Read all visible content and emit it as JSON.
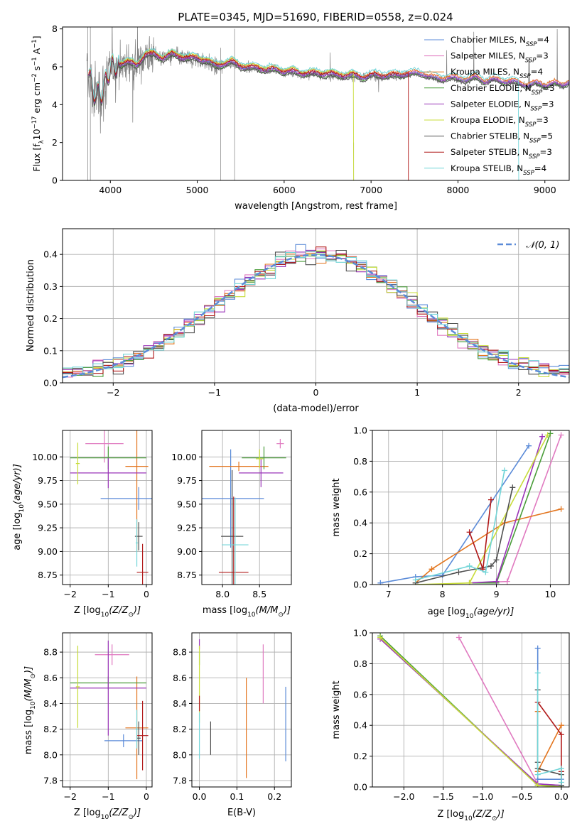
{
  "title": "PLATE=0345, MJD=51690, FIBERID=0558, z=0.024",
  "colors": {
    "c1": "#5b8bd8",
    "c2": "#e07ac0",
    "c3": "#e3751e",
    "c4": "#4a9d3a",
    "c5": "#9a34b8",
    "c6": "#c8dc3a",
    "c7": "#505050",
    "c8": "#b01818",
    "c9": "#72d5d8",
    "gray": "#808080",
    "grid": "#b0b0b0",
    "dash": "#5b8bd8"
  },
  "chart_data": [
    {
      "type": "line",
      "id": "spectrum",
      "xlabel": "wavelength [Angstrom, rest frame]",
      "ylabel_parts": [
        "Flux [f",
        "λ",
        "10",
        "−17",
        " erg cm",
        "−2",
        " s",
        "−1",
        " A",
        "−1",
        "]"
      ],
      "xlim": [
        3450,
        9280
      ],
      "ylim": [
        0,
        8.1
      ],
      "xticks": [
        4000,
        5000,
        6000,
        7000,
        8000,
        9000
      ],
      "yticks": [
        0,
        2,
        4,
        6,
        8
      ],
      "grid": false,
      "legend_position": "upper-right",
      "legend": [
        {
          "label": "Chabrier MILES, N",
          "sub": "SSP",
          "suffix": "=4",
          "color_key": "c1"
        },
        {
          "label": "Salpeter MILES, N",
          "sub": "SSP",
          "suffix": "=3",
          "color_key": "c2"
        },
        {
          "label": "Kroupa MILES, N",
          "sub": "SSP",
          "suffix": "=4",
          "color_key": "c3"
        },
        {
          "label": "Chabrier ELODIE, N",
          "sub": "SSP",
          "suffix": "=3",
          "color_key": "c4"
        },
        {
          "label": "Salpeter ELODIE, N",
          "sub": "SSP",
          "suffix": "=3",
          "color_key": "c5"
        },
        {
          "label": "Kroupa ELODIE, N",
          "sub": "SSP",
          "suffix": "=3",
          "color_key": "c6"
        },
        {
          "label": "Chabrier STELIB, N",
          "sub": "SSP",
          "suffix": "=5",
          "color_key": "c7"
        },
        {
          "label": "Salpeter STELIB, N",
          "sub": "SSP",
          "suffix": "=3",
          "color_key": "c8"
        },
        {
          "label": "Kroupa STELIB, N",
          "sub": "SSP",
          "suffix": "=4",
          "color_key": "c9"
        }
      ],
      "continuum": [
        [
          3750,
          5.7
        ],
        [
          3800,
          4.5
        ],
        [
          3900,
          4.6
        ],
        [
          4000,
          5.8
        ],
        [
          4100,
          6.1
        ],
        [
          4200,
          6.2
        ],
        [
          4300,
          6.0
        ],
        [
          4400,
          6.6
        ],
        [
          4500,
          6.6
        ],
        [
          4600,
          6.4
        ],
        [
          4700,
          6.6
        ],
        [
          4800,
          6.5
        ],
        [
          4900,
          6.4
        ],
        [
          5000,
          6.4
        ],
        [
          5100,
          6.3
        ],
        [
          5200,
          6.0
        ],
        [
          5300,
          6.1
        ],
        [
          5400,
          6.2
        ],
        [
          5500,
          6.0
        ],
        [
          5600,
          5.9
        ],
        [
          5700,
          5.9
        ],
        [
          5800,
          5.8
        ],
        [
          5900,
          5.8
        ],
        [
          6000,
          5.7
        ],
        [
          6100,
          5.7
        ],
        [
          6200,
          5.6
        ],
        [
          6300,
          5.6
        ],
        [
          6400,
          5.6
        ],
        [
          6500,
          5.6
        ],
        [
          6600,
          5.5
        ],
        [
          6700,
          5.5
        ],
        [
          6800,
          5.5
        ],
        [
          6900,
          5.4
        ],
        [
          7000,
          5.5
        ],
        [
          7100,
          5.5
        ],
        [
          7200,
          5.5
        ],
        [
          7300,
          5.5
        ],
        [
          7400,
          5.6
        ],
        [
          7500,
          5.6
        ],
        [
          7600,
          5.6
        ],
        [
          7700,
          5.4
        ],
        [
          7800,
          5.3
        ],
        [
          7900,
          5.4
        ],
        [
          8000,
          5.3
        ],
        [
          8100,
          5.3
        ],
        [
          8200,
          5.4
        ],
        [
          8300,
          5.2
        ],
        [
          8400,
          5.3
        ],
        [
          8500,
          5.2
        ],
        [
          8600,
          5.2
        ],
        [
          8700,
          5.1
        ],
        [
          8800,
          5.0
        ],
        [
          8900,
          5.1
        ],
        [
          9000,
          5.0
        ],
        [
          9100,
          5.1
        ],
        [
          9200,
          5.0
        ],
        [
          9280,
          5.2
        ]
      ],
      "model_cutoffs": {
        "c8": [
          3750,
          7430
        ],
        "c6": [
          3900,
          6800
        ],
        "c9": [
          3750,
          8700
        ],
        "c3": [
          3750,
          9280
        ],
        "c1": [
          3750,
          9280
        ],
        "c2": [
          3750,
          9280
        ],
        "c4": [
          3750,
          9280
        ],
        "c5": [
          3750,
          9280
        ],
        "c7": [
          3750,
          9280
        ]
      },
      "model_offsets": {
        "c1": 0.05,
        "c2": 0.1,
        "c3": 0.15,
        "c4": -0.05,
        "c5": 0.0,
        "c6": 0.2,
        "c7": -0.1,
        "c8": 0.1,
        "c9": 0.25
      }
    },
    {
      "type": "bar",
      "id": "residuals",
      "xlabel": "(data-model)/error",
      "ylabel": "Normed distribution",
      "xlim": [
        -2.5,
        2.5
      ],
      "ylim": [
        0,
        0.48
      ],
      "xticks": [
        -2,
        -1,
        0,
        1,
        2
      ],
      "yticks": [
        0.0,
        0.1,
        0.2,
        0.3,
        0.4
      ],
      "grid": true,
      "legend_label": "𝒩(0, 1)",
      "legend_position": "upper-right",
      "bin_width": 0.1,
      "bin_start": -2.5
    },
    {
      "type": "scatter",
      "id": "age_vs_Z",
      "xlabel_parts": [
        "Z [log",
        "10",
        "(Z/Z",
        "⊙",
        ")]"
      ],
      "ylabel_parts": [
        "age  [log",
        "10",
        "(age/yr)]"
      ],
      "xlim": [
        -2.2,
        0.15
      ],
      "ylim": [
        8.65,
        10.28
      ],
      "xticks": [
        -2,
        -1,
        0
      ],
      "yticks": [
        8.75,
        9.0,
        9.25,
        9.5,
        9.75,
        10.0
      ],
      "grid": true,
      "points": [
        {
          "x": -0.2,
          "y": 9.56,
          "xerr": 1.0,
          "yerr": 0.12,
          "color_key": "c1"
        },
        {
          "x": -1.1,
          "y": 10.14,
          "xerr": 0.5,
          "yerr": 0.2,
          "color_key": "c2"
        },
        {
          "x": -0.25,
          "y": 9.9,
          "xerr": 0.3,
          "yerr": 0.9,
          "color_key": "c3"
        },
        {
          "x": -1.0,
          "y": 9.99,
          "xerr": 1.0,
          "yerr": 0.12,
          "color_key": "c4"
        },
        {
          "x": -1.0,
          "y": 9.83,
          "xerr": 1.0,
          "yerr": 0.16,
          "color_key": "c5"
        },
        {
          "x": -1.8,
          "y": 9.93,
          "xerr": 0.05,
          "yerr": 0.22,
          "color_key": "c6"
        },
        {
          "x": -0.2,
          "y": 9.16,
          "xerr": 0.1,
          "yerr": 0.15,
          "color_key": "c7"
        },
        {
          "x": -0.1,
          "y": 8.78,
          "xerr": 0.15,
          "yerr": 0.3,
          "color_key": "c8"
        },
        {
          "x": -0.25,
          "y": 9.09,
          "xerr": 0.03,
          "yerr": 0.25,
          "color_key": "c9"
        }
      ]
    },
    {
      "type": "scatter",
      "id": "age_vs_mass",
      "xlabel_parts": [
        "mass [log",
        "10",
        "(M/M",
        "⊙",
        ")]"
      ],
      "xlim": [
        7.72,
        8.93
      ],
      "ylim": [
        8.65,
        10.28
      ],
      "xticks": [
        8.0,
        8.5
      ],
      "yticks": [
        8.75,
        9.0,
        9.25,
        9.5,
        9.75,
        10.0
      ],
      "grid": true,
      "points": [
        {
          "x": 8.11,
          "y": 9.56,
          "xerr": 0.45,
          "yerr": 0.52,
          "color_key": "c1"
        },
        {
          "x": 8.78,
          "y": 10.14,
          "xerr": 0.05,
          "yerr": 0.05,
          "color_key": "c2"
        },
        {
          "x": 8.22,
          "y": 9.9,
          "xerr": 0.4,
          "yerr": 0.05,
          "color_key": "c3"
        },
        {
          "x": 8.56,
          "y": 9.99,
          "xerr": 0.3,
          "yerr": 0.12,
          "color_key": "c4"
        },
        {
          "x": 8.52,
          "y": 9.83,
          "xerr": 0.3,
          "yerr": 0.15,
          "color_key": "c5"
        },
        {
          "x": 8.5,
          "y": 9.98,
          "xerr": 0.05,
          "yerr": 0.1,
          "color_key": "c6"
        },
        {
          "x": 8.13,
          "y": 9.16,
          "xerr": 0.15,
          "yerr": 0.7,
          "color_key": "c7"
        },
        {
          "x": 8.15,
          "y": 8.78,
          "xerr": 0.2,
          "yerr": 0.8,
          "color_key": "c8"
        },
        {
          "x": 8.17,
          "y": 9.07,
          "xerr": 0.18,
          "yerr": 0.5,
          "color_key": "c9"
        }
      ]
    },
    {
      "type": "line",
      "id": "weight_vs_age",
      "xlabel_parts": [
        "age  [log",
        "10",
        "(age/yr)]"
      ],
      "ylabel": "mass weight",
      "xlim": [
        6.7,
        10.35
      ],
      "ylim": [
        0,
        1.0
      ],
      "xticks": [
        7,
        8,
        9,
        10
      ],
      "yticks": [
        0.0,
        0.2,
        0.4,
        0.6,
        0.8,
        1.0
      ],
      "grid": true,
      "series": [
        {
          "color_key": "c1",
          "x": [
            6.85,
            7.5,
            8.0,
            9.6
          ],
          "y": [
            0.01,
            0.05,
            0.06,
            0.9
          ]
        },
        {
          "color_key": "c2",
          "x": [
            8.5,
            9.2,
            10.2
          ],
          "y": [
            0.01,
            0.02,
            0.97
          ]
        },
        {
          "color_key": "c3",
          "x": [
            7.5,
            7.8,
            9.15,
            10.2
          ],
          "y": [
            0.01,
            0.1,
            0.4,
            0.49
          ]
        },
        {
          "color_key": "c4",
          "x": [
            8.5,
            9.0,
            10.0
          ],
          "y": [
            0.01,
            0.01,
            0.98
          ]
        },
        {
          "color_key": "c5",
          "x": [
            8.5,
            9.0,
            9.85
          ],
          "y": [
            0.01,
            0.02,
            0.96
          ]
        },
        {
          "color_key": "c6",
          "x": [
            7.5,
            8.5,
            9.95
          ],
          "y": [
            0.0,
            0.01,
            0.97
          ]
        },
        {
          "color_key": "c7",
          "x": [
            7.5,
            8.3,
            8.9,
            9.0,
            9.3
          ],
          "y": [
            0.01,
            0.08,
            0.12,
            0.16,
            0.63
          ]
        },
        {
          "color_key": "c8",
          "x": [
            8.5,
            8.75,
            8.9
          ],
          "y": [
            0.34,
            0.1,
            0.55
          ]
        },
        {
          "color_key": "c9",
          "x": [
            7.5,
            8.5,
            8.8,
            9.15
          ],
          "y": [
            0.03,
            0.12,
            0.08,
            0.74
          ]
        }
      ]
    },
    {
      "type": "scatter",
      "id": "mass_vs_Z",
      "xlabel_parts": [
        "Z [log",
        "10",
        "(Z/Z",
        "⊙",
        ")]"
      ],
      "ylabel_parts": [
        "mass [log",
        "10",
        "(M/M",
        "⊙",
        ")]"
      ],
      "xlim": [
        -2.2,
        0.15
      ],
      "ylim": [
        7.75,
        8.95
      ],
      "xticks": [
        -2,
        -1,
        0
      ],
      "yticks": [
        7.8,
        8.0,
        8.2,
        8.4,
        8.6,
        8.8
      ],
      "grid": true,
      "points": [
        {
          "x": -0.6,
          "y": 8.11,
          "xerr": 0.5,
          "yerr": 0.05,
          "color_key": "c1"
        },
        {
          "x": -0.9,
          "y": 8.78,
          "xerr": 0.45,
          "yerr": 0.08,
          "color_key": "c2"
        },
        {
          "x": -0.25,
          "y": 8.21,
          "xerr": 0.3,
          "yerr": 0.4,
          "color_key": "c3"
        },
        {
          "x": -1.0,
          "y": 8.56,
          "xerr": 1.0,
          "yerr": 0.05,
          "color_key": "c4"
        },
        {
          "x": -1.0,
          "y": 8.52,
          "xerr": 1.0,
          "yerr": 0.37,
          "color_key": "c5"
        },
        {
          "x": -1.8,
          "y": 8.53,
          "xerr": 0.05,
          "yerr": 0.32,
          "color_key": "c6"
        },
        {
          "x": -0.2,
          "y": 8.13,
          "xerr": 0.05,
          "yerr": 0.13,
          "color_key": "c7"
        },
        {
          "x": -0.1,
          "y": 8.15,
          "xerr": 0.15,
          "yerr": 0.27,
          "color_key": "c8"
        },
        {
          "x": -0.25,
          "y": 8.2,
          "xerr": 0.03,
          "yerr": 0.15,
          "color_key": "c9"
        }
      ]
    },
    {
      "type": "scatter",
      "id": "ebv",
      "xlabel": "E(B-V)",
      "xlim": [
        -0.02,
        0.245
      ],
      "ylim": [
        7.75,
        8.95
      ],
      "xticks": [
        0.0,
        0.1,
        0.2
      ],
      "yticks": [
        7.8,
        8.0,
        8.2,
        8.4,
        8.6,
        8.8
      ],
      "grid": true,
      "points": [
        {
          "x": 0.23,
          "y": 8.24,
          "yerr": 0.29,
          "color_key": "c1"
        },
        {
          "x": 0.17,
          "y": 8.63,
          "yerr": 0.23,
          "color_key": "c2"
        },
        {
          "x": 0.125,
          "y": 8.21,
          "yerr": 0.39,
          "color_key": "c3"
        },
        {
          "x": 0.0,
          "y": 8.75,
          "yerr": 0.05,
          "color_key": "c4"
        },
        {
          "x": 0.0,
          "y": 8.86,
          "yerr": 0.04,
          "color_key": "c5"
        },
        {
          "x": 0.0,
          "y": 8.55,
          "yerr": 0.3,
          "color_key": "c6"
        },
        {
          "x": 0.03,
          "y": 8.13,
          "yerr": 0.13,
          "color_key": "c7"
        },
        {
          "x": 0.0,
          "y": 8.4,
          "yerr": 0.06,
          "color_key": "c8"
        },
        {
          "x": 0.0,
          "y": 8.15,
          "yerr": 0.18,
          "color_key": "c9"
        }
      ]
    },
    {
      "type": "line",
      "id": "weight_vs_Z",
      "xlabel_parts": [
        "Z [log",
        "10",
        "(Z/Z",
        "⊙",
        ")]"
      ],
      "ylabel": "mass weight",
      "xlim": [
        -2.4,
        0.1
      ],
      "ylim": [
        0,
        1.0
      ],
      "xticks": [
        -2.0,
        -1.5,
        -1.0,
        -0.5,
        0.0
      ],
      "yticks": [
        0.0,
        0.2,
        0.4,
        0.6,
        0.8,
        1.0
      ],
      "grid": true,
      "series": [
        {
          "color_key": "c1",
          "x": [
            -0.3,
            -0.3,
            0.0,
            0.0
          ],
          "y": [
            0.9,
            0.05,
            0.05,
            0.0
          ]
        },
        {
          "color_key": "c2",
          "x": [
            -1.3,
            -0.3,
            0.0
          ],
          "y": [
            0.97,
            0.02,
            0.01
          ]
        },
        {
          "color_key": "c3",
          "x": [
            -0.3,
            -0.3,
            0.0
          ],
          "y": [
            0.49,
            0.1,
            0.4
          ]
        },
        {
          "color_key": "c4",
          "x": [
            -2.3,
            -0.3,
            0.0
          ],
          "y": [
            0.98,
            0.01,
            0.01
          ]
        },
        {
          "color_key": "c5",
          "x": [
            -2.3,
            -0.3,
            0.0
          ],
          "y": [
            0.96,
            0.02,
            0.01
          ]
        },
        {
          "color_key": "c6",
          "x": [
            -2.3,
            -0.3,
            0.0
          ],
          "y": [
            0.97,
            0.01,
            0.0
          ]
        },
        {
          "color_key": "c7",
          "x": [
            -0.3,
            -0.3,
            -0.3,
            0.0,
            0.0
          ],
          "y": [
            0.63,
            0.16,
            0.12,
            0.08,
            0.01
          ]
        },
        {
          "color_key": "c8",
          "x": [
            -0.3,
            0.0,
            0.0
          ],
          "y": [
            0.55,
            0.34,
            0.1
          ]
        },
        {
          "color_key": "c9",
          "x": [
            -0.3,
            -0.3,
            0.0,
            0.0
          ],
          "y": [
            0.74,
            0.08,
            0.12,
            0.03
          ]
        }
      ]
    }
  ]
}
